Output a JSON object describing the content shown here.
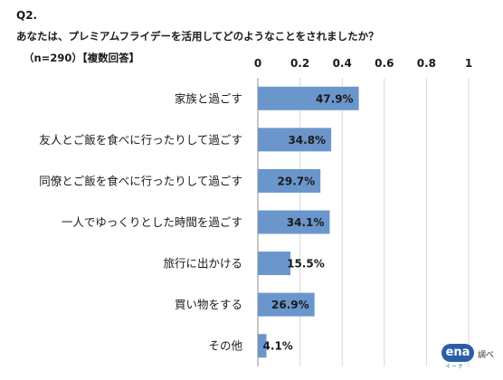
{
  "question": {
    "number": "Q2.",
    "text": "あなたは、プレミアムフライデーを活用してどのようなことをされましたか？",
    "note": "（n=290）【複数回答】"
  },
  "logo": {
    "brand": "ena",
    "sub": "イーナ",
    "note": "調べ"
  },
  "chart_data": {
    "type": "bar",
    "orientation": "horizontal",
    "categories": [
      "家族と過ごす",
      "友人とご飯を食べに行ったりして過ごす",
      "同僚とご飯を食べに行ったりして過ごす",
      "一人でゆっくりとした時間を過ごす",
      "旅行に出かける",
      "買い物をする",
      "その他"
    ],
    "values": [
      0.479,
      0.348,
      0.297,
      0.341,
      0.155,
      0.269,
      0.041
    ],
    "data_labels": [
      "47.9%",
      "34.8%",
      "29.7%",
      "34.1%",
      "15.5%",
      "26.9%",
      "4.1%"
    ],
    "x_ticks": [
      "0",
      "0.2",
      "0.4",
      "0.6",
      "0.8",
      "1"
    ],
    "xlim": [
      0,
      1
    ],
    "grid": true,
    "bar_color": "#6b96cc"
  }
}
